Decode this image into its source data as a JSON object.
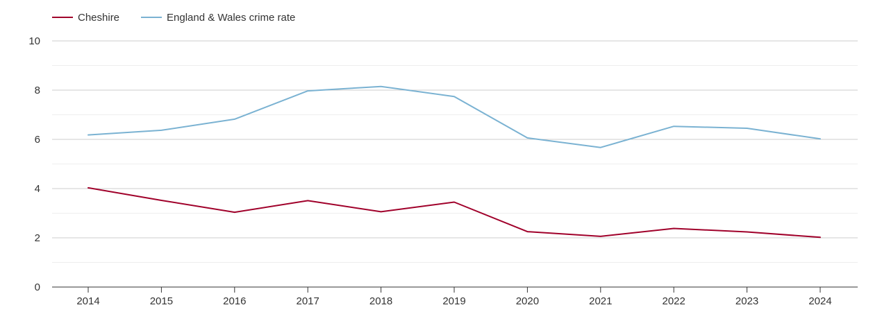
{
  "chart_data": {
    "type": "line",
    "title": "",
    "xlabel": "",
    "ylabel": "",
    "x": [
      "2014",
      "2015",
      "2016",
      "2017",
      "2018",
      "2019",
      "2020",
      "2021",
      "2022",
      "2023",
      "2024"
    ],
    "ylim": [
      0,
      10
    ],
    "yticks": [
      0,
      2,
      4,
      6,
      8,
      10
    ],
    "grid": true,
    "legend_position": "top-left",
    "series": [
      {
        "name": "Cheshire",
        "color": "#a0002a",
        "values": [
          4.03,
          3.52,
          3.04,
          3.51,
          3.06,
          3.45,
          2.25,
          2.06,
          2.38,
          2.24,
          2.02
        ]
      },
      {
        "name": "England & Wales crime rate",
        "color": "#7ab2d2",
        "values": [
          6.18,
          6.37,
          6.82,
          7.97,
          8.15,
          7.74,
          6.06,
          5.67,
          6.53,
          6.45,
          6.02
        ]
      }
    ]
  }
}
